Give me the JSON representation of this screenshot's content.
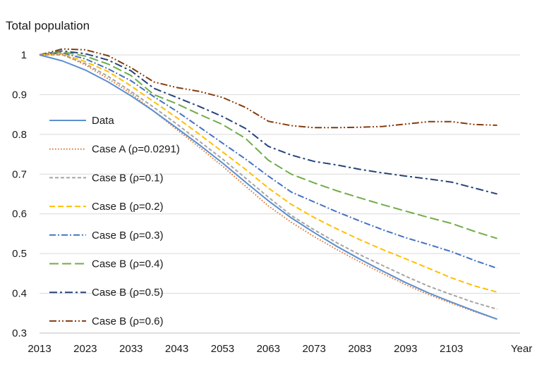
{
  "chart_data": {
    "type": "line",
    "title": "",
    "ylabel": "Total population",
    "xlabel": "Year",
    "ylim": [
      0.3,
      1.0
    ],
    "xlim": [
      2013,
      2118
    ],
    "y_ticks": [
      0.3,
      0.4,
      0.5,
      0.6,
      0.7,
      0.8,
      0.9,
      1
    ],
    "y_tick_labels": [
      "0.3",
      "0.4",
      "0.5",
      "0.6",
      "0.7",
      "0.8",
      "0.9",
      "1"
    ],
    "x_ticks": [
      2013,
      2023,
      2033,
      2043,
      2053,
      2063,
      2073,
      2083,
      2093,
      2103
    ],
    "x_tick_labels": [
      "2013",
      "2023",
      "2033",
      "2043",
      "2053",
      "2063",
      "2073",
      "2083",
      "2093",
      "2103"
    ],
    "grid": "horizontal",
    "legend_position": "left",
    "series": [
      {
        "name": "Data",
        "color": "#5b8fd0",
        "dash": "solid",
        "points": [
          [
            2013,
            1.0
          ],
          [
            2018,
            0.985
          ],
          [
            2023,
            0.962
          ],
          [
            2028,
            0.932
          ],
          [
            2033,
            0.897
          ],
          [
            2038,
            0.858
          ],
          [
            2043,
            0.816
          ],
          [
            2048,
            0.773
          ],
          [
            2053,
            0.728
          ],
          [
            2058,
            0.68
          ],
          [
            2063,
            0.633
          ],
          [
            2068,
            0.59
          ],
          [
            2073,
            0.553
          ],
          [
            2078,
            0.518
          ],
          [
            2083,
            0.486
          ],
          [
            2088,
            0.456
          ],
          [
            2093,
            0.427
          ],
          [
            2098,
            0.401
          ],
          [
            2103,
            0.378
          ],
          [
            2108,
            0.356
          ],
          [
            2113,
            0.335
          ]
        ]
      },
      {
        "name": "Case A (ρ=0.0291)",
        "color": "#e07b39",
        "dash": "dot",
        "points": [
          [
            2013,
            1.0
          ],
          [
            2018,
            1.002
          ],
          [
            2023,
            0.975
          ],
          [
            2028,
            0.94
          ],
          [
            2033,
            0.903
          ],
          [
            2038,
            0.858
          ],
          [
            2043,
            0.812
          ],
          [
            2048,
            0.767
          ],
          [
            2053,
            0.72
          ],
          [
            2058,
            0.67
          ],
          [
            2063,
            0.62
          ],
          [
            2068,
            0.579
          ],
          [
            2073,
            0.543
          ],
          [
            2078,
            0.51
          ],
          [
            2083,
            0.479
          ],
          [
            2088,
            0.45
          ],
          [
            2093,
            0.422
          ],
          [
            2098,
            0.397
          ],
          [
            2103,
            0.375
          ],
          [
            2108,
            0.354
          ],
          [
            2113,
            0.335
          ]
        ]
      },
      {
        "name": "Case B (ρ=0.1)",
        "color": "#a5a5a5",
        "dash": "dash",
        "points": [
          [
            2013,
            1.0
          ],
          [
            2018,
            1.0
          ],
          [
            2023,
            0.978
          ],
          [
            2028,
            0.946
          ],
          [
            2033,
            0.908
          ],
          [
            2038,
            0.868
          ],
          [
            2043,
            0.826
          ],
          [
            2048,
            0.782
          ],
          [
            2053,
            0.738
          ],
          [
            2058,
            0.69
          ],
          [
            2063,
            0.642
          ],
          [
            2068,
            0.596
          ],
          [
            2073,
            0.56
          ],
          [
            2078,
            0.527
          ],
          [
            2083,
            0.497
          ],
          [
            2088,
            0.47
          ],
          [
            2093,
            0.443
          ],
          [
            2098,
            0.418
          ],
          [
            2103,
            0.397
          ],
          [
            2108,
            0.377
          ],
          [
            2113,
            0.36
          ]
        ]
      },
      {
        "name": "Case B (ρ=0.2)",
        "color": "#ffc000",
        "dash": "longdash",
        "points": [
          [
            2013,
            1.0
          ],
          [
            2018,
            1.003
          ],
          [
            2023,
            0.983
          ],
          [
            2028,
            0.958
          ],
          [
            2033,
            0.922
          ],
          [
            2038,
            0.882
          ],
          [
            2043,
            0.842
          ],
          [
            2048,
            0.8
          ],
          [
            2053,
            0.756
          ],
          [
            2058,
            0.712
          ],
          [
            2063,
            0.665
          ],
          [
            2068,
            0.624
          ],
          [
            2073,
            0.591
          ],
          [
            2078,
            0.562
          ],
          [
            2083,
            0.535
          ],
          [
            2088,
            0.51
          ],
          [
            2093,
            0.487
          ],
          [
            2098,
            0.463
          ],
          [
            2103,
            0.439
          ],
          [
            2108,
            0.419
          ],
          [
            2113,
            0.403
          ]
        ]
      },
      {
        "name": "Case B (ρ=0.3)",
        "color": "#4472c4",
        "dash": "dashdot",
        "points": [
          [
            2013,
            1.0
          ],
          [
            2018,
            1.005
          ],
          [
            2023,
            0.99
          ],
          [
            2028,
            0.965
          ],
          [
            2033,
            0.935
          ],
          [
            2038,
            0.895
          ],
          [
            2043,
            0.858
          ],
          [
            2048,
            0.818
          ],
          [
            2053,
            0.778
          ],
          [
            2058,
            0.738
          ],
          [
            2063,
            0.695
          ],
          [
            2068,
            0.655
          ],
          [
            2073,
            0.63
          ],
          [
            2078,
            0.605
          ],
          [
            2083,
            0.582
          ],
          [
            2088,
            0.56
          ],
          [
            2093,
            0.54
          ],
          [
            2098,
            0.523
          ],
          [
            2103,
            0.505
          ],
          [
            2108,
            0.483
          ],
          [
            2113,
            0.463
          ]
        ]
      },
      {
        "name": "Case B (ρ=0.4)",
        "color": "#70ad47",
        "dash": "longdash2",
        "points": [
          [
            2013,
            1.0
          ],
          [
            2018,
            1.008
          ],
          [
            2023,
            0.997
          ],
          [
            2028,
            0.977
          ],
          [
            2033,
            0.948
          ],
          [
            2038,
            0.9
          ],
          [
            2043,
            0.877
          ],
          [
            2048,
            0.85
          ],
          [
            2053,
            0.825
          ],
          [
            2058,
            0.79
          ],
          [
            2063,
            0.735
          ],
          [
            2068,
            0.7
          ],
          [
            2073,
            0.678
          ],
          [
            2078,
            0.658
          ],
          [
            2083,
            0.64
          ],
          [
            2088,
            0.623
          ],
          [
            2093,
            0.607
          ],
          [
            2098,
            0.591
          ],
          [
            2103,
            0.576
          ],
          [
            2108,
            0.556
          ],
          [
            2113,
            0.538
          ]
        ]
      },
      {
        "name": "Case B (ρ=0.5)",
        "color": "#264478",
        "dash": "dashdot2",
        "points": [
          [
            2013,
            1.0
          ],
          [
            2018,
            1.01
          ],
          [
            2023,
            1.003
          ],
          [
            2028,
            0.987
          ],
          [
            2033,
            0.96
          ],
          [
            2038,
            0.916
          ],
          [
            2043,
            0.893
          ],
          [
            2048,
            0.87
          ],
          [
            2053,
            0.845
          ],
          [
            2058,
            0.815
          ],
          [
            2063,
            0.77
          ],
          [
            2068,
            0.748
          ],
          [
            2073,
            0.732
          ],
          [
            2078,
            0.723
          ],
          [
            2083,
            0.712
          ],
          [
            2088,
            0.703
          ],
          [
            2093,
            0.695
          ],
          [
            2098,
            0.688
          ],
          [
            2103,
            0.68
          ],
          [
            2108,
            0.665
          ],
          [
            2113,
            0.65
          ]
        ]
      },
      {
        "name": "Case B (ρ=0.6)",
        "color": "#843c0c",
        "dash": "dashdotdot",
        "points": [
          [
            2013,
            1.0
          ],
          [
            2018,
            1.015
          ],
          [
            2023,
            1.013
          ],
          [
            2028,
            0.998
          ],
          [
            2033,
            0.968
          ],
          [
            2038,
            0.932
          ],
          [
            2043,
            0.918
          ],
          [
            2048,
            0.908
          ],
          [
            2053,
            0.893
          ],
          [
            2058,
            0.868
          ],
          [
            2063,
            0.833
          ],
          [
            2068,
            0.822
          ],
          [
            2073,
            0.817
          ],
          [
            2078,
            0.817
          ],
          [
            2083,
            0.818
          ],
          [
            2088,
            0.82
          ],
          [
            2093,
            0.826
          ],
          [
            2098,
            0.832
          ],
          [
            2103,
            0.832
          ],
          [
            2108,
            0.825
          ],
          [
            2113,
            0.823
          ]
        ]
      }
    ]
  }
}
